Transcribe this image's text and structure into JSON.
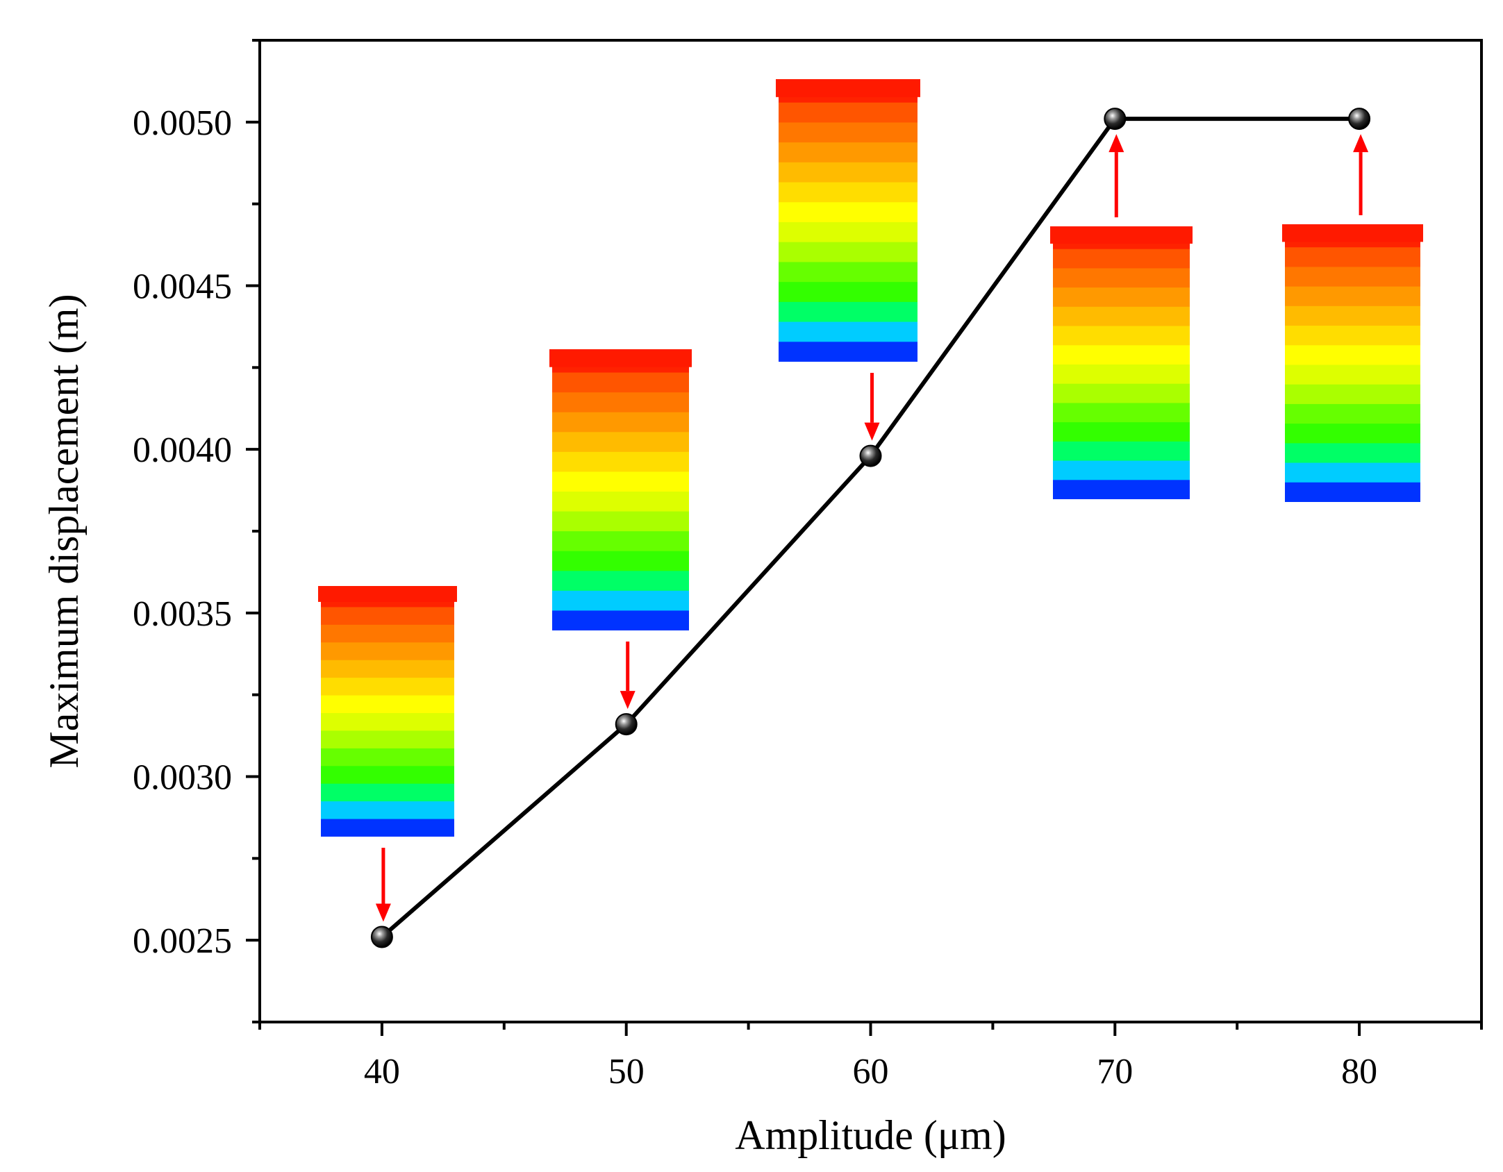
{
  "chart_data": {
    "type": "line",
    "title": "",
    "xlabel": "Amplitude (μm)",
    "ylabel": "Maximum displacement (m)",
    "x": [
      40,
      50,
      60,
      70,
      80
    ],
    "series": [
      {
        "name": "Maximum displacement",
        "values": [
          0.00251,
          0.00316,
          0.00398,
          0.00501,
          0.00501
        ]
      }
    ],
    "xlim": [
      35,
      85
    ],
    "ylim": [
      0.00225,
      0.00525
    ],
    "xticks": [
      40,
      50,
      60,
      70,
      80
    ],
    "xtick_labels": [
      "40",
      "50",
      "60",
      "70",
      "80"
    ],
    "xminor_ticks": [
      35,
      45,
      55,
      65,
      75,
      85
    ],
    "yticks": [
      0.0025,
      0.003,
      0.0035,
      0.004,
      0.0045,
      0.005
    ],
    "ytick_labels": [
      "0.0025",
      "0.0030",
      "0.0035",
      "0.0040",
      "0.0045",
      "0.0050"
    ],
    "yminor_ticks": [
      0.00225,
      0.00275,
      0.00325,
      0.00375,
      0.00425,
      0.00475,
      0.00525
    ],
    "grid": false,
    "line_color": "#000000",
    "marker": "sphere",
    "annotations": [
      {
        "for_x": 40,
        "inset": "displacement contour map",
        "arrow": "down",
        "arrow_color": "#ff0000"
      },
      {
        "for_x": 50,
        "inset": "displacement contour map",
        "arrow": "down",
        "arrow_color": "#ff0000"
      },
      {
        "for_x": 60,
        "inset": "displacement contour map",
        "arrow": "down",
        "arrow_color": "#ff0000"
      },
      {
        "for_x": 70,
        "inset": "displacement contour map",
        "arrow": "up",
        "arrow_color": "#ff0000"
      },
      {
        "for_x": 80,
        "inset": "displacement contour map",
        "arrow": "up",
        "arrow_color": "#ff0000"
      }
    ],
    "contour_colors": [
      "#0033ff",
      "#00ccff",
      "#00ff66",
      "#33ff00",
      "#66ff00",
      "#aaff00",
      "#ddff00",
      "#ffff00",
      "#ffdd00",
      "#ffbb00",
      "#ff9900",
      "#ff7700",
      "#ff5500",
      "#ff2200"
    ]
  }
}
